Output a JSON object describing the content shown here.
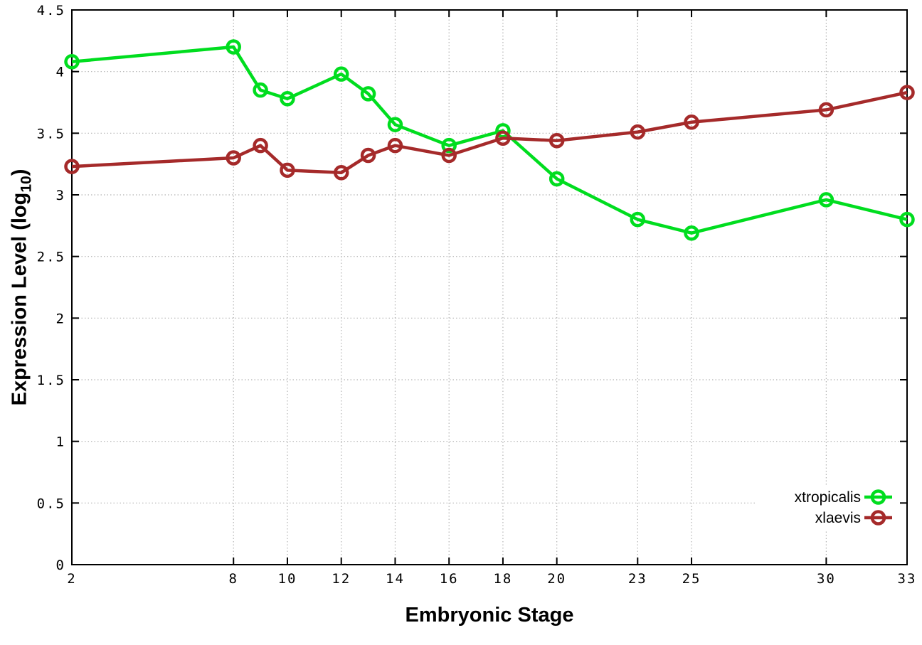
{
  "figure": {
    "background": "#ffffff",
    "xlabel": "Embryonic Stage",
    "ylabel_prefix": "Expression Level (log",
    "ylabel_sub": "10",
    "ylabel_suffix": ")"
  },
  "chart_data": {
    "type": "line",
    "title": "",
    "xlabel": "Embryonic Stage",
    "ylabel": "Expression Level (log10)",
    "xlim": [
      2,
      33
    ],
    "ylim": [
      0,
      4.5
    ],
    "grid": true,
    "grid_color": "#b4b4b4",
    "border_color": "#000000",
    "legend_position": "bottom-right",
    "marker": "open-circle",
    "xticks": [
      2,
      8,
      10,
      12,
      14,
      16,
      18,
      20,
      23,
      25,
      30,
      33
    ],
    "xtick_labels": [
      "2",
      "8",
      "10",
      "12",
      "14",
      "16",
      "18",
      "20",
      "23",
      "25",
      "30",
      "33"
    ],
    "yticks": [
      0,
      0.5,
      1,
      1.5,
      2,
      2.5,
      3,
      3.5,
      4,
      4.5
    ],
    "ytick_labels": [
      "0",
      "0.5",
      "1",
      "1.5",
      "2",
      "2.5",
      "3",
      "3.5",
      "4",
      "4.5"
    ],
    "x": [
      2,
      8,
      9,
      10,
      12,
      13,
      14,
      16,
      18,
      20,
      23,
      25,
      30,
      33
    ],
    "series": [
      {
        "name": "xtropicalis",
        "color": "#00dd1f",
        "values": [
          4.08,
          4.2,
          3.85,
          3.78,
          3.98,
          3.82,
          3.57,
          3.4,
          3.52,
          3.13,
          2.8,
          2.69,
          2.96,
          2.8
        ]
      },
      {
        "name": "xlaevis",
        "color": "#a52a2a",
        "values": [
          3.23,
          3.3,
          3.4,
          3.2,
          3.18,
          3.32,
          3.4,
          3.32,
          3.46,
          3.44,
          3.51,
          3.59,
          3.69,
          3.83
        ]
      }
    ]
  }
}
